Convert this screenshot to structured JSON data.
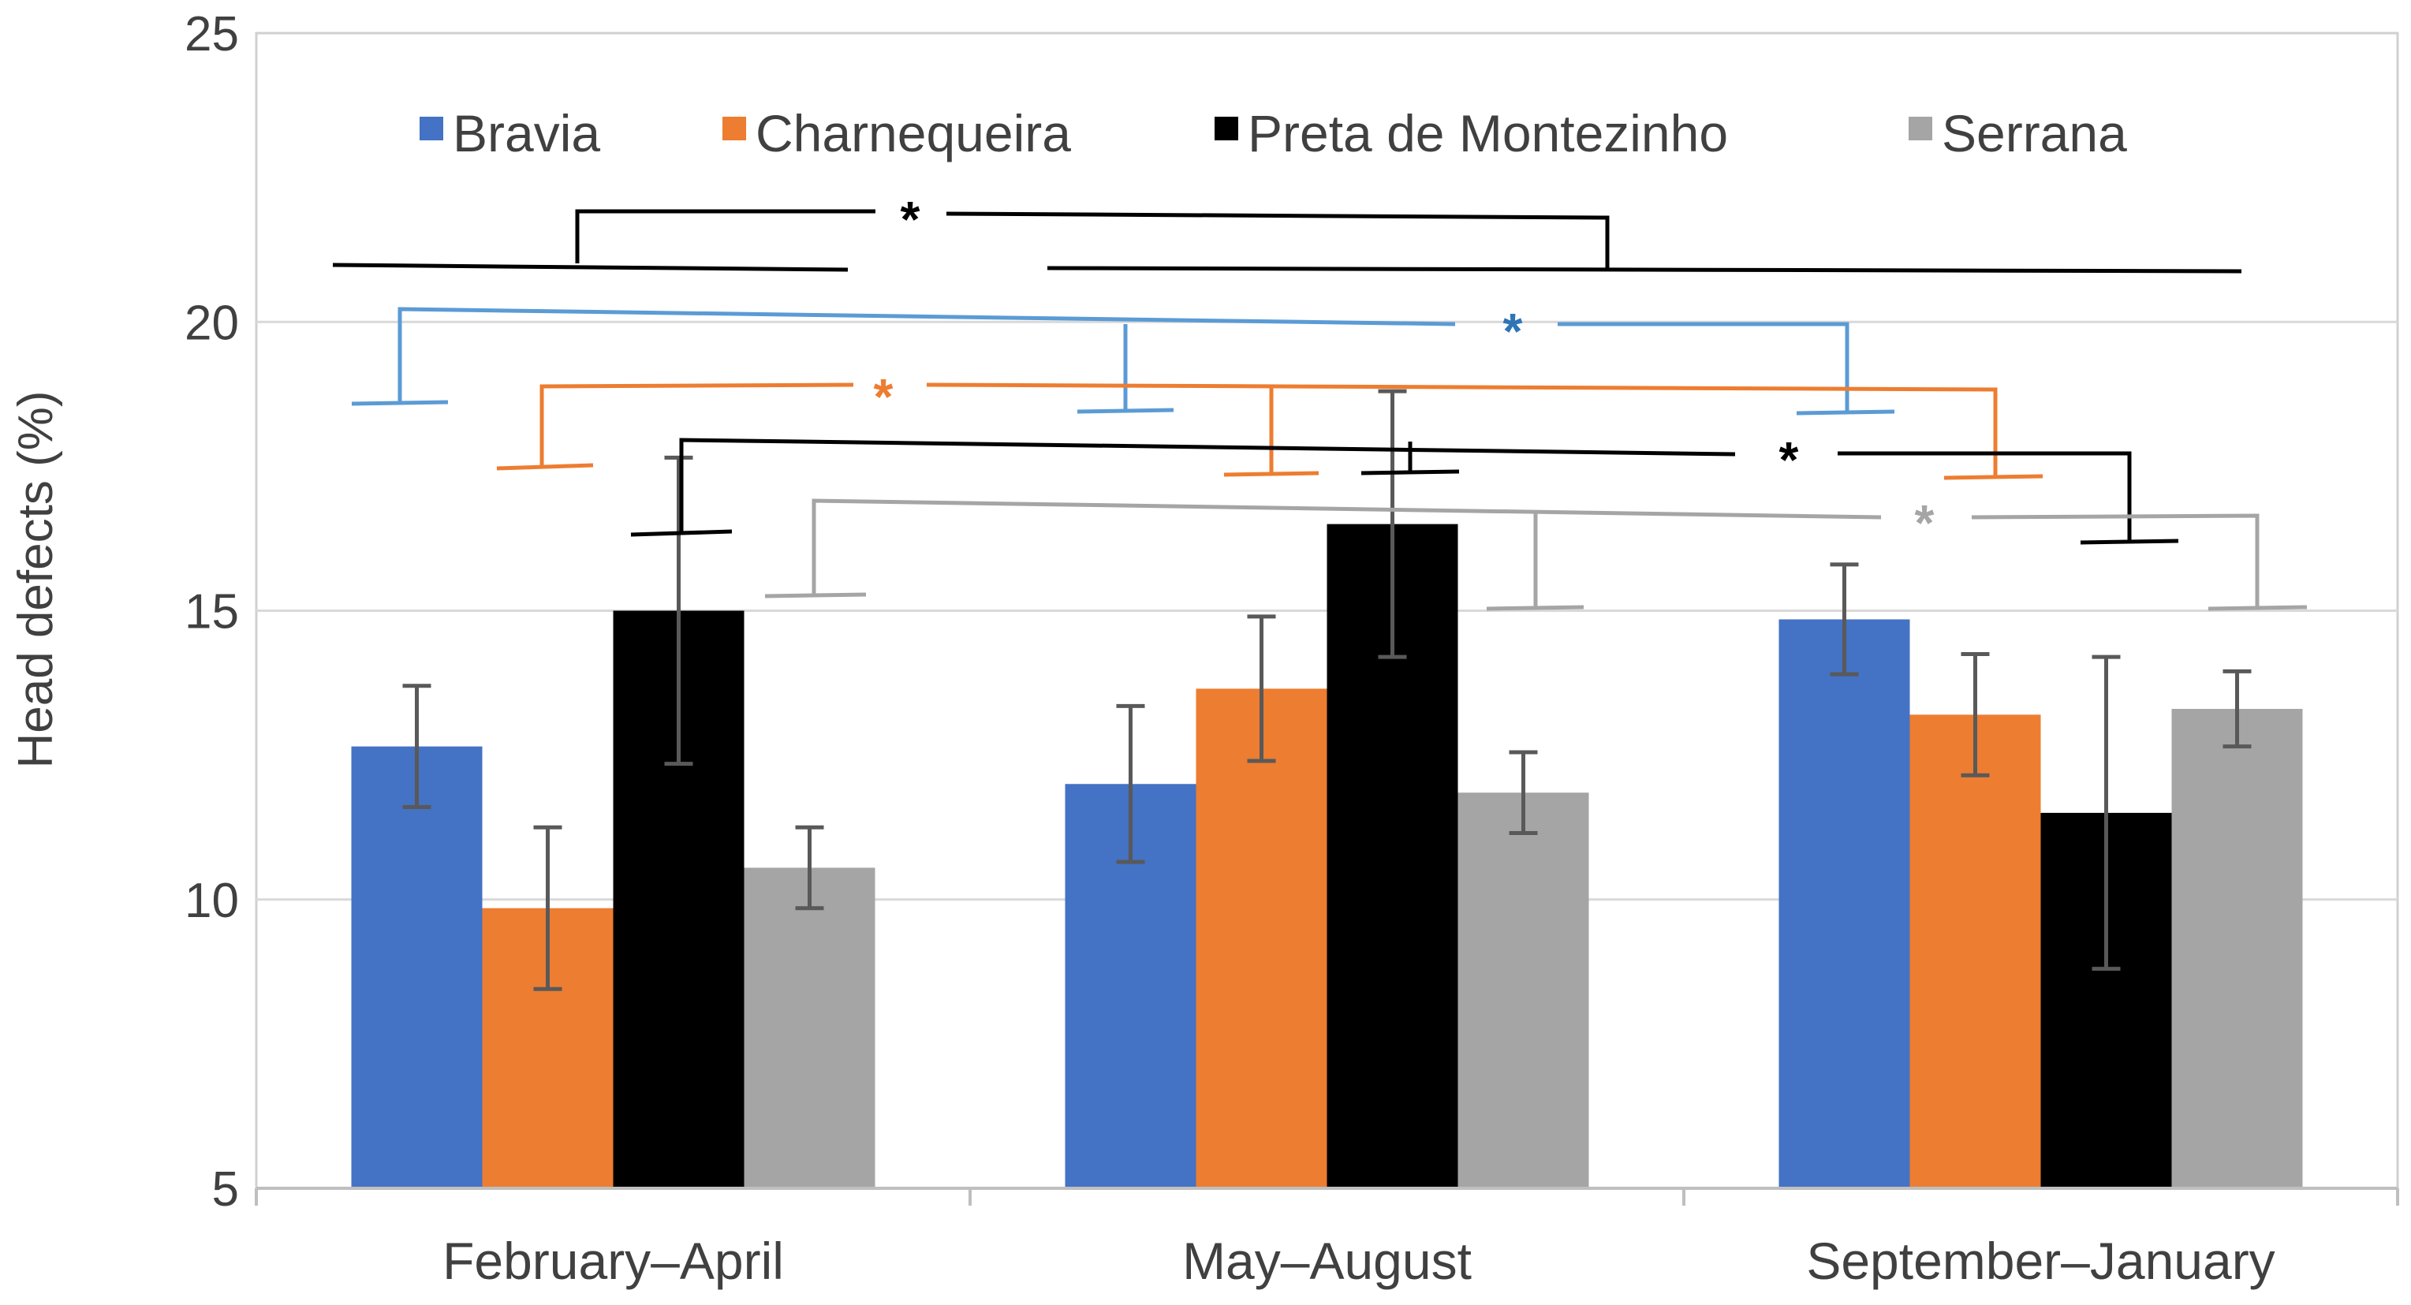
{
  "chart_data": {
    "type": "bar",
    "title": "",
    "xlabel": "",
    "ylabel": "Head defects (%)",
    "ylim": [
      5,
      25
    ],
    "yticks": [
      5,
      10,
      15,
      20,
      25
    ],
    "grid": true,
    "legend_position": "top",
    "categories": [
      "February–April",
      "May–August",
      "September–January"
    ],
    "series": [
      {
        "name": "Bravia",
        "color": "#4472C4",
        "values": [
          12.65,
          12.0,
          14.85
        ],
        "err": [
          1.05,
          1.35,
          0.95
        ]
      },
      {
        "name": "Charnequeira",
        "color": "#ED7D31",
        "values": [
          9.85,
          13.65,
          13.2
        ],
        "err": [
          1.4,
          1.25,
          1.05
        ]
      },
      {
        "name": "Preta de Montezinho",
        "color": "#000000",
        "values": [
          15.0,
          16.5,
          11.5
        ],
        "err": [
          2.65,
          2.3,
          2.7
        ]
      },
      {
        "name": "Serrana",
        "color": "#A5A5A5",
        "values": [
          10.55,
          11.85,
          13.3
        ],
        "err": [
          0.7,
          0.7,
          0.65
        ]
      }
    ],
    "annotations": [
      {
        "label": "*",
        "color": "#000000",
        "type": "period-comparison"
      },
      {
        "label": "*",
        "color": "#2E75B6",
        "series": "Bravia"
      },
      {
        "label": "*",
        "color": "#ED7D31",
        "series": "Charnequeira"
      },
      {
        "label": "*",
        "color": "#000000",
        "series": "Preta de Montezinho"
      },
      {
        "label": "*",
        "color": "#A5A5A5",
        "series": "Serrana"
      }
    ]
  }
}
